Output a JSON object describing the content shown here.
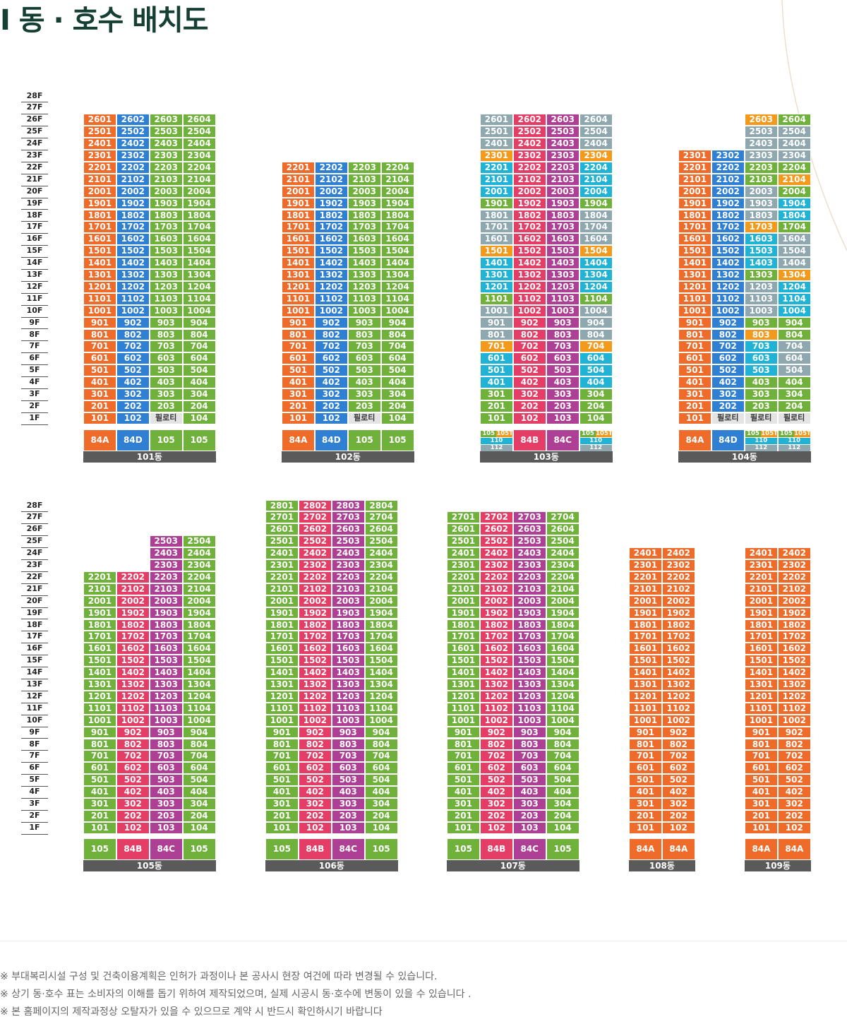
{
  "title": "I 동 · 호수 배치도",
  "colors": {
    "84A": "#ee6b2a",
    "84D": "#2f7fd3",
    "84B": "#e43e66",
    "84C": "#ad3f94",
    "105": "#6fb13b",
    "105T": "#f39a1c",
    "110": "#20b3d5",
    "112": "#8fa8b0",
    "piloti": "#e4e4e4",
    "name_bar": "#5a5a5a",
    "title": "#163f33"
  },
  "floor_axis": [
    "28F",
    "27F",
    "26F",
    "25F",
    "24F",
    "23F",
    "22F",
    "21F",
    "20F",
    "19F",
    "18F",
    "17F",
    "16F",
    "15F",
    "14F",
    "13F",
    "12F",
    "11F",
    "10F",
    "9F",
    "8F",
    "7F",
    "6F",
    "5F",
    "4F",
    "3F",
    "2F",
    "1F"
  ],
  "row1_buildings": [
    {
      "name": "101동",
      "columns": [
        {
          "unit": 1,
          "top": 26,
          "first": 1,
          "type": "84A"
        },
        {
          "unit": 2,
          "top": 26,
          "first": 1,
          "type": "84D"
        },
        {
          "unit": 3,
          "top": 26,
          "first": 2,
          "type": "105"
        },
        {
          "unit": 4,
          "top": 26,
          "first": 1,
          "type": "105"
        }
      ],
      "piloti_label": "필로티",
      "overrides": [],
      "legend": [
        {
          "kind": "single",
          "label": "84A",
          "type": "84A"
        },
        {
          "kind": "single",
          "label": "84D",
          "type": "84D"
        },
        {
          "kind": "single",
          "label": "105",
          "type": "105"
        },
        {
          "kind": "single",
          "label": "105",
          "type": "105"
        }
      ]
    },
    {
      "name": "102동",
      "columns": [
        {
          "unit": 1,
          "top": 22,
          "first": 1,
          "type": "84A"
        },
        {
          "unit": 2,
          "top": 22,
          "first": 1,
          "type": "84D"
        },
        {
          "unit": 3,
          "top": 22,
          "first": 2,
          "type": "105"
        },
        {
          "unit": 4,
          "top": 22,
          "first": 1,
          "type": "105"
        }
      ],
      "piloti_label": "필로티",
      "overrides": [],
      "legend": [
        {
          "kind": "single",
          "label": "84A",
          "type": "84A"
        },
        {
          "kind": "single",
          "label": "84D",
          "type": "84D"
        },
        {
          "kind": "single",
          "label": "105",
          "type": "105"
        },
        {
          "kind": "single",
          "label": "105",
          "type": "105"
        }
      ]
    },
    {
      "name": "103동",
      "columns": [
        {
          "unit": 1,
          "top": 26,
          "first": 1,
          "type": "105"
        },
        {
          "unit": 2,
          "top": 26,
          "first": 1,
          "type": "84B"
        },
        {
          "unit": 3,
          "top": 26,
          "first": 1,
          "type": "84C"
        },
        {
          "unit": 4,
          "top": 26,
          "first": 1,
          "type": "105"
        }
      ],
      "piloti_label": "필로티",
      "overrides": [
        {
          "floors": [
            24,
            25,
            26
          ],
          "units": [
            1,
            4
          ],
          "type": "112"
        },
        {
          "floors": [
            23
          ],
          "units": [
            1,
            4
          ],
          "type": "105T"
        },
        {
          "floors": [
            20,
            21,
            22
          ],
          "units": [
            1,
            4
          ],
          "type": "110"
        },
        {
          "floors": [
            16,
            17,
            18
          ],
          "units": [
            1,
            4
          ],
          "type": "112"
        },
        {
          "floors": [
            15
          ],
          "units": [
            1,
            4
          ],
          "type": "105T"
        },
        {
          "floors": [
            12,
            13,
            14
          ],
          "units": [
            1,
            4
          ],
          "type": "110"
        },
        {
          "floors": [
            8,
            9,
            10
          ],
          "units": [
            1,
            4
          ],
          "type": "112"
        },
        {
          "floors": [
            7
          ],
          "units": [
            1,
            4
          ],
          "type": "105T"
        },
        {
          "floors": [
            4,
            5,
            6
          ],
          "units": [
            1,
            4
          ],
          "type": "110"
        }
      ],
      "legend": [
        {
          "kind": "stack",
          "type": "105",
          "sub": [
            {
              "labels": [
                "105",
                "105T"
              ],
              "types": [
                "105",
                "105T"
              ]
            },
            {
              "labels": [
                "110"
              ],
              "types": [
                "110"
              ]
            },
            {
              "labels": [
                "112"
              ],
              "types": [
                "112"
              ]
            }
          ]
        },
        {
          "kind": "single",
          "label": "84B",
          "type": "84B"
        },
        {
          "kind": "single",
          "label": "84C",
          "type": "84C"
        },
        {
          "kind": "stack",
          "type": "105",
          "sub": [
            {
              "labels": [
                "105",
                "105T"
              ],
              "types": [
                "105",
                "105T"
              ]
            },
            {
              "labels": [
                "110"
              ],
              "types": [
                "110"
              ]
            },
            {
              "labels": [
                "112"
              ],
              "types": [
                "112"
              ]
            }
          ]
        }
      ]
    },
    {
      "name": "104동",
      "columns": [
        {
          "unit": 1,
          "top": 23,
          "first": 1,
          "type": "84A"
        },
        {
          "unit": 2,
          "top": 23,
          "first": 2,
          "type": "84D"
        },
        {
          "unit": 3,
          "top": 26,
          "first": 2,
          "type": "105"
        },
        {
          "unit": 4,
          "top": 26,
          "first": 2,
          "type": "105"
        }
      ],
      "piloti_label": "필로티",
      "overrides": [
        {
          "floors": [
            26
          ],
          "units": [
            3
          ],
          "type": "105T"
        },
        {
          "floors": [
            25,
            24
          ],
          "units": [
            3,
            4
          ],
          "type": "112"
        },
        {
          "floors": [
            23
          ],
          "units": [
            3,
            4
          ],
          "type": "112"
        },
        {
          "floors": [
            21
          ],
          "units": [
            4
          ],
          "type": "105T"
        },
        {
          "floors": [
            20
          ],
          "units": [
            3
          ],
          "type": "112"
        },
        {
          "floors": [
            19,
            18
          ],
          "units": [
            3
          ],
          "type": "112"
        },
        {
          "floors": [
            19,
            18
          ],
          "units": [
            4
          ],
          "type": "110"
        },
        {
          "floors": [
            17
          ],
          "units": [
            3
          ],
          "type": "105T"
        },
        {
          "floors": [
            16,
            15,
            14
          ],
          "units": [
            3
          ],
          "type": "110"
        },
        {
          "floors": [
            16,
            15,
            14
          ],
          "units": [
            4
          ],
          "type": "112"
        },
        {
          "floors": [
            13
          ],
          "units": [
            4
          ],
          "type": "105T"
        },
        {
          "floors": [
            12,
            11,
            10
          ],
          "units": [
            3
          ],
          "type": "112"
        },
        {
          "floors": [
            12,
            11,
            10
          ],
          "units": [
            4
          ],
          "type": "110"
        },
        {
          "floors": [
            8
          ],
          "units": [
            3
          ],
          "type": "105T"
        },
        {
          "floors": [
            7,
            6,
            5
          ],
          "units": [
            3
          ],
          "type": "110"
        },
        {
          "floors": [
            7,
            6,
            5
          ],
          "units": [
            4
          ],
          "type": "112"
        }
      ],
      "legend": [
        {
          "kind": "single",
          "label": "84A",
          "type": "84A"
        },
        {
          "kind": "single",
          "label": "84D",
          "type": "84D"
        },
        {
          "kind": "stack",
          "type": "105",
          "sub": [
            {
              "labels": [
                "105",
                "105T"
              ],
              "types": [
                "105",
                "105T"
              ]
            },
            {
              "labels": [
                "110"
              ],
              "types": [
                "110"
              ]
            },
            {
              "labels": [
                "112"
              ],
              "types": [
                "112"
              ]
            }
          ]
        },
        {
          "kind": "stack",
          "type": "105",
          "sub": [
            {
              "labels": [
                "105",
                "105T"
              ],
              "types": [
                "105",
                "105T"
              ]
            },
            {
              "labels": [
                "110"
              ],
              "types": [
                "110"
              ]
            },
            {
              "labels": [
                "112"
              ],
              "types": [
                "112"
              ]
            }
          ]
        }
      ]
    }
  ],
  "row2_buildings": [
    {
      "name": "105동",
      "columns": [
        {
          "unit": 1,
          "top": 22,
          "first": 1,
          "type": "105"
        },
        {
          "unit": 2,
          "top": 22,
          "first": 1,
          "type": "84B"
        },
        {
          "unit": 3,
          "top": 25,
          "first": 1,
          "type": "84C"
        },
        {
          "unit": 4,
          "top": 25,
          "first": 1,
          "type": "105"
        }
      ],
      "overrides": [],
      "legend": [
        {
          "kind": "single",
          "label": "105",
          "type": "105"
        },
        {
          "kind": "single",
          "label": "84B",
          "type": "84B"
        },
        {
          "kind": "single",
          "label": "84C",
          "type": "84C"
        },
        {
          "kind": "single",
          "label": "105",
          "type": "105"
        }
      ]
    },
    {
      "name": "106동",
      "columns": [
        {
          "unit": 1,
          "top": 28,
          "first": 1,
          "type": "105"
        },
        {
          "unit": 2,
          "top": 28,
          "first": 1,
          "type": "84B"
        },
        {
          "unit": 3,
          "top": 28,
          "first": 1,
          "type": "84C"
        },
        {
          "unit": 4,
          "top": 28,
          "first": 1,
          "type": "105"
        }
      ],
      "overrides": [],
      "legend": [
        {
          "kind": "single",
          "label": "105",
          "type": "105"
        },
        {
          "kind": "single",
          "label": "84B",
          "type": "84B"
        },
        {
          "kind": "single",
          "label": "84C",
          "type": "84C"
        },
        {
          "kind": "single",
          "label": "105",
          "type": "105"
        }
      ]
    },
    {
      "name": "107동",
      "columns": [
        {
          "unit": 1,
          "top": 27,
          "first": 1,
          "type": "105"
        },
        {
          "unit": 2,
          "top": 27,
          "first": 1,
          "type": "84B"
        },
        {
          "unit": 3,
          "top": 27,
          "first": 1,
          "type": "84C"
        },
        {
          "unit": 4,
          "top": 27,
          "first": 1,
          "type": "105"
        }
      ],
      "overrides": [],
      "legend": [
        {
          "kind": "single",
          "label": "105",
          "type": "105"
        },
        {
          "kind": "single",
          "label": "84B",
          "type": "84B"
        },
        {
          "kind": "single",
          "label": "84C",
          "type": "84C"
        },
        {
          "kind": "single",
          "label": "105",
          "type": "105"
        }
      ]
    },
    {
      "name": "108동",
      "columns": [
        {
          "unit": 1,
          "top": 24,
          "first": 1,
          "type": "84A"
        },
        {
          "unit": 2,
          "top": 24,
          "first": 1,
          "type": "84A"
        }
      ],
      "overrides": [],
      "legend": [
        {
          "kind": "single",
          "label": "84A",
          "type": "84A"
        },
        {
          "kind": "single",
          "label": "84A",
          "type": "84A"
        }
      ]
    },
    {
      "name": "109동",
      "columns": [
        {
          "unit": 1,
          "top": 24,
          "first": 1,
          "type": "84A"
        },
        {
          "unit": 2,
          "top": 24,
          "first": 1,
          "type": "84A"
        }
      ],
      "overrides": [],
      "legend": [
        {
          "kind": "single",
          "label": "84A",
          "type": "84A"
        },
        {
          "kind": "single",
          "label": "84A",
          "type": "84A"
        }
      ]
    }
  ],
  "notes": [
    "※ 부대복리시설 구성 및 건축이용계획은 인허가 과정이나 본 공사시 현장 여건에 따라 변경될 수 있습니다.",
    "※ 상기 동·호수 표는 소비자의 이해를 돕기 위하여 제작되었으며, 실제 시공시 동·호수에 변동이 있을 수 있습니다 .",
    "※ 본 홈페이지의 제작과정상 오탈자가 있을 수 있으므로 계약 시 반드시 확인하시기 바랍니다"
  ]
}
